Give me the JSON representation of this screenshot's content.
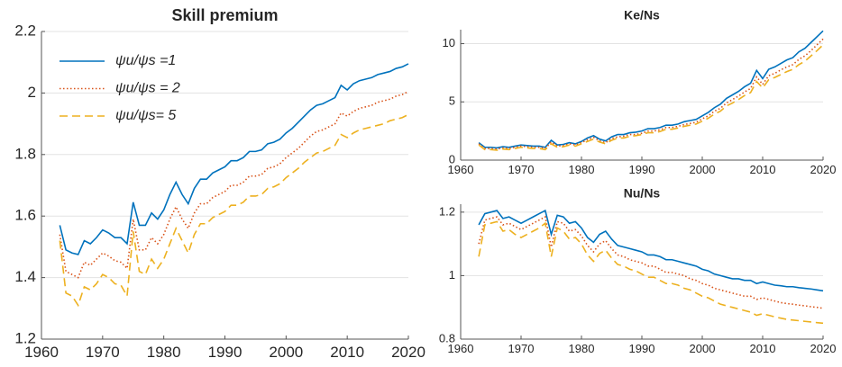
{
  "chart_data": [
    {
      "type": "line",
      "title": "Skill premium",
      "legend": "upper left",
      "grid": true,
      "x": [
        1963,
        1964,
        1965,
        1966,
        1967,
        1968,
        1969,
        1970,
        1971,
        1972,
        1973,
        1974,
        1975,
        1976,
        1977,
        1978,
        1979,
        1980,
        1981,
        1982,
        1983,
        1984,
        1985,
        1986,
        1987,
        1988,
        1989,
        1990,
        1991,
        1992,
        1993,
        1994,
        1995,
        1996,
        1997,
        1998,
        1999,
        2000,
        2001,
        2002,
        2003,
        2004,
        2005,
        2006,
        2007,
        2008,
        2009,
        2010,
        2011,
        2012,
        2013,
        2014,
        2015,
        2016,
        2017,
        2018,
        2019,
        2020
      ],
      "xlim": [
        1960,
        2020
      ],
      "xticks": [
        1960,
        1970,
        1980,
        1990,
        2000,
        2010,
        2020
      ],
      "ylim": [
        1.2,
        2.2
      ],
      "yticks": [
        1.2,
        1.4,
        1.6,
        1.8,
        2,
        2.2
      ],
      "series": [
        {
          "name": "ψu/ψs =1",
          "color": "#0072BD",
          "dash": "solid",
          "values": [
            1.57,
            1.49,
            1.48,
            1.475,
            1.52,
            1.51,
            1.53,
            1.555,
            1.545,
            1.53,
            1.53,
            1.51,
            1.645,
            1.57,
            1.57,
            1.61,
            1.59,
            1.62,
            1.67,
            1.71,
            1.67,
            1.64,
            1.69,
            1.72,
            1.72,
            1.74,
            1.75,
            1.76,
            1.78,
            1.78,
            1.79,
            1.81,
            1.81,
            1.815,
            1.835,
            1.84,
            1.85,
            1.87,
            1.885,
            1.905,
            1.925,
            1.945,
            1.96,
            1.965,
            1.975,
            1.985,
            2.025,
            2.01,
            2.03,
            2.04,
            2.045,
            2.05,
            2.06,
            2.065,
            2.07,
            2.08,
            2.085,
            2.095
          ]
        },
        {
          "name": "ψu/ψs = 2",
          "color": "#D95319",
          "dash": "dotted",
          "values": [
            1.54,
            1.42,
            1.41,
            1.4,
            1.45,
            1.44,
            1.46,
            1.48,
            1.47,
            1.455,
            1.45,
            1.43,
            1.59,
            1.49,
            1.49,
            1.53,
            1.51,
            1.54,
            1.59,
            1.63,
            1.59,
            1.56,
            1.61,
            1.64,
            1.64,
            1.66,
            1.67,
            1.68,
            1.7,
            1.7,
            1.71,
            1.73,
            1.73,
            1.735,
            1.755,
            1.76,
            1.77,
            1.79,
            1.805,
            1.82,
            1.84,
            1.86,
            1.875,
            1.88,
            1.89,
            1.9,
            1.935,
            1.925,
            1.94,
            1.95,
            1.955,
            1.96,
            1.97,
            1.975,
            1.98,
            1.99,
            1.995,
            2.005
          ]
        },
        {
          "name": "ψu/ψs= 5",
          "color": "#EDB120",
          "dash": "dashed",
          "values": [
            1.52,
            1.35,
            1.34,
            1.31,
            1.37,
            1.36,
            1.38,
            1.41,
            1.4,
            1.38,
            1.375,
            1.34,
            1.55,
            1.42,
            1.41,
            1.46,
            1.43,
            1.46,
            1.51,
            1.56,
            1.52,
            1.48,
            1.54,
            1.575,
            1.575,
            1.595,
            1.605,
            1.615,
            1.635,
            1.635,
            1.645,
            1.665,
            1.665,
            1.67,
            1.69,
            1.695,
            1.705,
            1.725,
            1.74,
            1.755,
            1.775,
            1.79,
            1.805,
            1.81,
            1.82,
            1.83,
            1.865,
            1.855,
            1.87,
            1.88,
            1.885,
            1.89,
            1.895,
            1.9,
            1.91,
            1.915,
            1.92,
            1.93
          ]
        }
      ]
    },
    {
      "type": "line",
      "title": "Ke/Ns",
      "grid": true,
      "x": [
        1963,
        1964,
        1965,
        1966,
        1967,
        1968,
        1969,
        1970,
        1971,
        1972,
        1973,
        1974,
        1975,
        1976,
        1977,
        1978,
        1979,
        1980,
        1981,
        1982,
        1983,
        1984,
        1985,
        1986,
        1987,
        1988,
        1989,
        1990,
        1991,
        1992,
        1993,
        1994,
        1995,
        1996,
        1997,
        1998,
        1999,
        2000,
        2001,
        2002,
        2003,
        2004,
        2005,
        2006,
        2007,
        2008,
        2009,
        2010,
        2011,
        2012,
        2013,
        2014,
        2015,
        2016,
        2017,
        2018,
        2019,
        2020
      ],
      "xlim": [
        1960,
        2020
      ],
      "xticks": [
        1960,
        1970,
        1980,
        1990,
        2000,
        2010,
        2020
      ],
      "ylim": [
        0,
        11.2
      ],
      "yticks": [
        0,
        5,
        10
      ],
      "series": [
        {
          "color": "#0072BD",
          "dash": "solid",
          "values": [
            1.5,
            1.1,
            1.1,
            1.05,
            1.15,
            1.1,
            1.2,
            1.3,
            1.25,
            1.2,
            1.2,
            1.1,
            1.7,
            1.3,
            1.35,
            1.5,
            1.4,
            1.6,
            1.9,
            2.1,
            1.8,
            1.65,
            2.0,
            2.2,
            2.2,
            2.35,
            2.4,
            2.5,
            2.7,
            2.7,
            2.8,
            3.0,
            3.0,
            3.1,
            3.3,
            3.4,
            3.5,
            3.8,
            4.1,
            4.5,
            4.8,
            5.3,
            5.6,
            5.9,
            6.3,
            6.6,
            7.7,
            7.0,
            7.8,
            8.0,
            8.3,
            8.6,
            8.8,
            9.3,
            9.6,
            10.1,
            10.6,
            11.1
          ]
        },
        {
          "color": "#D95319",
          "dash": "dotted",
          "values": [
            1.4,
            1.0,
            1.0,
            0.95,
            1.05,
            1.0,
            1.1,
            1.2,
            1.15,
            1.1,
            1.1,
            1.0,
            1.55,
            1.2,
            1.25,
            1.4,
            1.3,
            1.5,
            1.75,
            1.95,
            1.65,
            1.5,
            1.85,
            2.0,
            2.05,
            2.2,
            2.2,
            2.3,
            2.5,
            2.5,
            2.6,
            2.8,
            2.8,
            2.9,
            3.05,
            3.15,
            3.25,
            3.55,
            3.8,
            4.2,
            4.45,
            4.9,
            5.2,
            5.5,
            5.85,
            6.15,
            7.15,
            6.5,
            7.25,
            7.45,
            7.75,
            8.0,
            8.2,
            8.65,
            8.95,
            9.4,
            9.9,
            10.4
          ]
        },
        {
          "color": "#EDB120",
          "dash": "dashed",
          "values": [
            1.3,
            0.9,
            0.9,
            0.85,
            0.95,
            0.9,
            1.0,
            1.1,
            1.05,
            1.0,
            1.0,
            0.9,
            1.4,
            1.1,
            1.15,
            1.3,
            1.2,
            1.4,
            1.6,
            1.8,
            1.55,
            1.4,
            1.7,
            1.9,
            1.9,
            2.05,
            2.1,
            2.2,
            2.35,
            2.35,
            2.45,
            2.65,
            2.65,
            2.75,
            2.9,
            3.0,
            3.1,
            3.35,
            3.6,
            3.95,
            4.2,
            4.65,
            4.9,
            5.2,
            5.55,
            5.8,
            6.75,
            6.2,
            6.9,
            7.1,
            7.35,
            7.6,
            7.8,
            8.2,
            8.5,
            8.95,
            9.4,
            9.9
          ]
        }
      ]
    },
    {
      "type": "line",
      "title": "Nu/Ns",
      "grid": true,
      "x": [
        1963,
        1964,
        1965,
        1966,
        1967,
        1968,
        1969,
        1970,
        1971,
        1972,
        1973,
        1974,
        1975,
        1976,
        1977,
        1978,
        1979,
        1980,
        1981,
        1982,
        1983,
        1984,
        1985,
        1986,
        1987,
        1988,
        1989,
        1990,
        1991,
        1992,
        1993,
        1994,
        1995,
        1996,
        1997,
        1998,
        1999,
        2000,
        2001,
        2002,
        2003,
        2004,
        2005,
        2006,
        2007,
        2008,
        2009,
        2010,
        2011,
        2012,
        2013,
        2014,
        2015,
        2016,
        2017,
        2018,
        2019,
        2020
      ],
      "xlim": [
        1960,
        2020
      ],
      "xticks": [
        1960,
        1970,
        1980,
        1990,
        2000,
        2010,
        2020
      ],
      "ylim": [
        0.8,
        1.225
      ],
      "yticks": [
        0.8,
        1,
        1.2
      ],
      "series": [
        {
          "color": "#0072BD",
          "dash": "solid",
          "values": [
            1.16,
            1.195,
            1.2,
            1.205,
            1.18,
            1.185,
            1.175,
            1.165,
            1.175,
            1.185,
            1.195,
            1.205,
            1.13,
            1.19,
            1.185,
            1.165,
            1.17,
            1.15,
            1.12,
            1.105,
            1.13,
            1.14,
            1.115,
            1.095,
            1.09,
            1.085,
            1.08,
            1.075,
            1.065,
            1.065,
            1.06,
            1.05,
            1.05,
            1.045,
            1.04,
            1.035,
            1.03,
            1.02,
            1.015,
            1.005,
            1.0,
            0.995,
            0.99,
            0.99,
            0.985,
            0.985,
            0.975,
            0.98,
            0.975,
            0.97,
            0.968,
            0.965,
            0.965,
            0.962,
            0.96,
            0.958,
            0.955,
            0.952
          ]
        },
        {
          "color": "#D95319",
          "dash": "dotted",
          "values": [
            1.1,
            1.175,
            1.18,
            1.185,
            1.16,
            1.165,
            1.155,
            1.145,
            1.155,
            1.165,
            1.175,
            1.185,
            1.09,
            1.17,
            1.165,
            1.14,
            1.145,
            1.125,
            1.095,
            1.075,
            1.1,
            1.11,
            1.085,
            1.065,
            1.06,
            1.05,
            1.045,
            1.04,
            1.03,
            1.03,
            1.02,
            1.01,
            1.01,
            1.005,
            1.0,
            0.99,
            0.985,
            0.975,
            0.97,
            0.96,
            0.955,
            0.95,
            0.945,
            0.94,
            0.935,
            0.935,
            0.925,
            0.93,
            0.925,
            0.92,
            0.915,
            0.912,
            0.91,
            0.907,
            0.905,
            0.902,
            0.9,
            0.897
          ]
        },
        {
          "color": "#EDB120",
          "dash": "dashed",
          "values": [
            1.06,
            1.16,
            1.165,
            1.17,
            1.14,
            1.145,
            1.13,
            1.12,
            1.13,
            1.14,
            1.15,
            1.165,
            1.06,
            1.15,
            1.14,
            1.115,
            1.12,
            1.1,
            1.065,
            1.045,
            1.07,
            1.08,
            1.055,
            1.035,
            1.03,
            1.02,
            1.015,
            1.005,
            0.995,
            0.995,
            0.985,
            0.975,
            0.975,
            0.97,
            0.96,
            0.955,
            0.945,
            0.935,
            0.93,
            0.92,
            0.91,
            0.905,
            0.9,
            0.895,
            0.89,
            0.885,
            0.875,
            0.88,
            0.875,
            0.87,
            0.866,
            0.862,
            0.86,
            0.858,
            0.856,
            0.854,
            0.852,
            0.85
          ]
        }
      ]
    }
  ]
}
